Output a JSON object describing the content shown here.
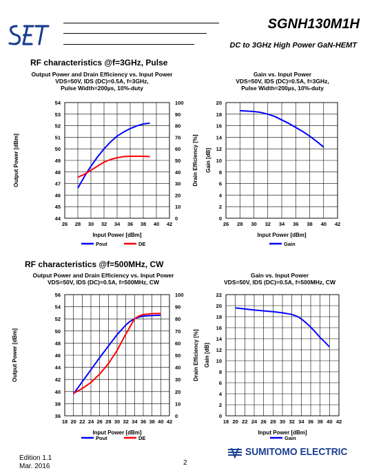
{
  "header": {
    "logo_text": "SET",
    "part_number": "SGNH130M1H",
    "subtitle": "DC to 3GHz High Power GaN-HEMT"
  },
  "sections": {
    "pulse": "RF characteristics @f=3GHz, Pulse",
    "cw": "RF characteristics @f=500MHz, CW"
  },
  "footer": {
    "edition": "Edition 1.1",
    "date": "Mar. 2016",
    "page": "2",
    "company": "SUMITOMO ELECTRIC"
  },
  "colors": {
    "pout": "#0000ff",
    "de": "#ff0000",
    "gain": "#0000ff",
    "grid": "#000000",
    "brand": "#1a3f8f"
  },
  "chart_data": [
    {
      "type": "line",
      "title": "Output Power and Drain Efficiency vs. Input Power",
      "subtitle_lines": [
        "VDS=50V, IDS (DC)=0.5A, f=3GHz,",
        "Pulse Width=200µs, 10%-duty"
      ],
      "xlabel": "Input Power [dBm]",
      "ylabel": "Output Power [dBm]",
      "y2label": "Drain Efficiency [%]",
      "xlim": [
        26,
        42
      ],
      "xticks": [
        26,
        28,
        30,
        32,
        34,
        36,
        38,
        40,
        42
      ],
      "ylim": [
        44,
        54
      ],
      "yticks": [
        44,
        45,
        46,
        47,
        48,
        49,
        50,
        51,
        52,
        53,
        54
      ],
      "y2lim": [
        0,
        100
      ],
      "y2ticks": [
        0,
        10,
        20,
        30,
        40,
        50,
        60,
        70,
        80,
        90,
        100
      ],
      "grid": true,
      "legend": "bottom",
      "series": [
        {
          "name": "Pout",
          "axis": "left",
          "color": "#0000ff",
          "x": [
            28,
            29,
            30,
            31,
            32,
            33,
            34,
            35,
            36,
            37,
            38,
            39
          ],
          "y": [
            46.6,
            47.6,
            48.5,
            49.3,
            50.0,
            50.6,
            51.1,
            51.45,
            51.75,
            51.98,
            52.15,
            52.22
          ]
        },
        {
          "name": "DE",
          "axis": "right",
          "color": "#ff0000",
          "x": [
            28,
            29,
            30,
            31,
            32,
            33,
            34,
            35,
            36,
            37,
            38,
            39
          ],
          "y": [
            35.5,
            38.0,
            41.5,
            45.0,
            48.5,
            50.8,
            52.3,
            53.3,
            53.6,
            53.6,
            53.6,
            53.3
          ]
        }
      ]
    },
    {
      "type": "line",
      "title": "Gain vs. Input Power",
      "subtitle_lines": [
        "VDS=50V, IDS (DC)=0.5A, f=3GHz,",
        "Pulse Width=200µs, 10%-duty"
      ],
      "xlabel": "Input Power [dBm]",
      "ylabel": "Gain [dB]",
      "xlim": [
        26,
        42
      ],
      "xticks": [
        26,
        28,
        30,
        32,
        34,
        36,
        38,
        40,
        42
      ],
      "ylim": [
        0,
        20
      ],
      "yticks": [
        0,
        2,
        4,
        6,
        8,
        10,
        12,
        14,
        16,
        18,
        20
      ],
      "grid": true,
      "legend": "bottom",
      "series": [
        {
          "name": "Gain",
          "axis": "left",
          "color": "#0000ff",
          "x": [
            28,
            30,
            31,
            32,
            33,
            34,
            35,
            36,
            37,
            38,
            39,
            40
          ],
          "y": [
            18.6,
            18.45,
            18.3,
            18.0,
            17.6,
            17.0,
            16.4,
            15.7,
            15.0,
            14.2,
            13.3,
            12.3
          ]
        }
      ]
    },
    {
      "type": "line",
      "title": "Output Power and Drain Efficiency vs. Input Power",
      "subtitle_lines": [
        "VDS=50V, IDS (DC)=0.5A, f=500MHz, CW"
      ],
      "xlabel": "Input Power [dBm]",
      "ylabel": "Output Power [dBm]",
      "y2label": "Drain Efficiency [%]",
      "xlim": [
        18,
        42
      ],
      "xticks": [
        18,
        20,
        22,
        24,
        26,
        28,
        30,
        32,
        34,
        36,
        38,
        40,
        42
      ],
      "ylim": [
        36,
        56
      ],
      "yticks": [
        36,
        38,
        40,
        42,
        44,
        46,
        48,
        50,
        52,
        54,
        56
      ],
      "y2lim": [
        0,
        100
      ],
      "y2ticks": [
        0,
        10,
        20,
        30,
        40,
        50,
        60,
        70,
        80,
        90,
        100
      ],
      "grid": true,
      "legend": "bottom",
      "series": [
        {
          "name": "Pout",
          "axis": "left",
          "color": "#0000ff",
          "x": [
            20,
            22,
            24,
            26,
            28,
            30,
            32,
            33,
            34,
            35,
            36,
            37,
            38,
            40
          ],
          "y": [
            39.6,
            41.6,
            43.6,
            45.6,
            47.5,
            49.4,
            51.0,
            51.6,
            52.0,
            52.3,
            52.45,
            52.5,
            52.55,
            52.6
          ]
        },
        {
          "name": "DE",
          "axis": "right",
          "color": "#ff0000",
          "x": [
            20,
            22,
            24,
            26,
            28,
            30,
            32,
            34,
            35,
            36,
            37,
            38,
            40
          ],
          "y": [
            18.5,
            22.5,
            27.5,
            34.5,
            43.0,
            54.0,
            67.5,
            80.0,
            82.5,
            83.5,
            84.0,
            84.3,
            84.5
          ]
        }
      ]
    },
    {
      "type": "line",
      "title": "Gain vs. Input Power",
      "subtitle_lines": [
        "VDS=50V, IDS (DC)=0.5A, f=500MHz, CW"
      ],
      "xlabel": "Input Power [dBm]",
      "ylabel": "Gain [dB]",
      "xlim": [
        18,
        42
      ],
      "xticks": [
        18,
        20,
        22,
        24,
        26,
        28,
        30,
        32,
        34,
        36,
        38,
        40,
        42
      ],
      "ylim": [
        0,
        22
      ],
      "yticks": [
        0,
        2,
        4,
        6,
        8,
        10,
        12,
        14,
        16,
        18,
        20,
        22
      ],
      "grid": true,
      "legend": "bottom",
      "series": [
        {
          "name": "Gain",
          "axis": "left",
          "color": "#0000ff",
          "x": [
            20,
            22,
            24,
            26,
            28,
            30,
            32,
            33,
            34,
            35,
            36,
            37,
            38,
            39,
            40
          ],
          "y": [
            19.6,
            19.4,
            19.2,
            19.05,
            18.9,
            18.7,
            18.4,
            18.1,
            17.6,
            16.9,
            16.1,
            15.2,
            14.2,
            13.4,
            12.5
          ]
        }
      ]
    }
  ]
}
